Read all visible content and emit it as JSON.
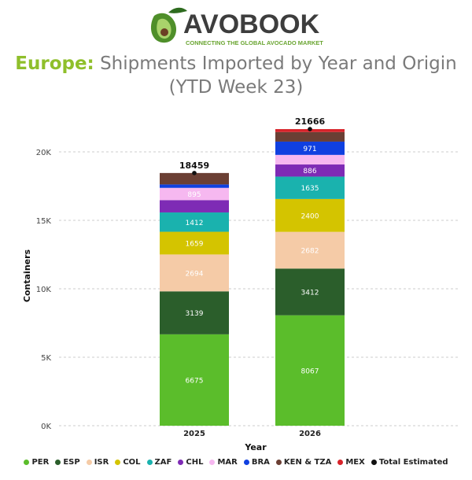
{
  "logo": {
    "name": "AVOBOOK",
    "tagline": "CONNECTING THE GLOBAL AVOCADO MARKET"
  },
  "title_highlight": "Europe:",
  "title_rest": " Shipments Imported by Year and Origin",
  "title_line2": "(YTD Week 23)",
  "chart_data": {
    "type": "bar",
    "stacked": true,
    "categories": [
      "2025",
      "2026"
    ],
    "xlabel": "Year",
    "ylabel": "Containers",
    "ylim": [
      0,
      22000
    ],
    "yticks": [
      0,
      5000,
      10000,
      15000,
      20000
    ],
    "ytick_labels": [
      "0K",
      "5K",
      "10K",
      "15K",
      "20K"
    ],
    "grid": true,
    "legend_position": "bottom",
    "series": [
      {
        "name": "PER",
        "color": "#5bbd2b",
        "values": [
          6675,
          8067
        ]
      },
      {
        "name": "ESP",
        "color": "#2b5e2b",
        "values": [
          3139,
          3412
        ]
      },
      {
        "name": "ISR",
        "color": "#f5cba7",
        "values": [
          2694,
          2682
        ]
      },
      {
        "name": "COL",
        "color": "#d4c400",
        "values": [
          1659,
          2400
        ]
      },
      {
        "name": "ZAF",
        "color": "#1ab2ae",
        "values": [
          1412,
          1635
        ]
      },
      {
        "name": "CHL",
        "color": "#7e2bb5",
        "values": [
          900,
          886
        ]
      },
      {
        "name": "MAR",
        "color": "#f6b8f0",
        "values": [
          895,
          700
        ]
      },
      {
        "name": "BRA",
        "color": "#1040e0",
        "values": [
          250,
          971
        ]
      },
      {
        "name": "KEN & TZA",
        "color": "#6b3f34",
        "values": [
          835,
          700
        ]
      },
      {
        "name": "MEX",
        "color": "#d8232a",
        "values": [
          0,
          213
        ]
      }
    ],
    "shown_labels": [
      [
        true,
        true
      ],
      [
        true,
        true
      ],
      [
        true,
        true
      ],
      [
        true,
        true
      ],
      [
        true,
        true
      ],
      [
        false,
        true
      ],
      [
        true,
        false
      ],
      [
        false,
        true
      ],
      [
        false,
        false
      ],
      [
        false,
        false
      ]
    ],
    "totals": {
      "name": "Total Estimated",
      "color": "#111111",
      "values": [
        18459,
        21666
      ]
    }
  }
}
